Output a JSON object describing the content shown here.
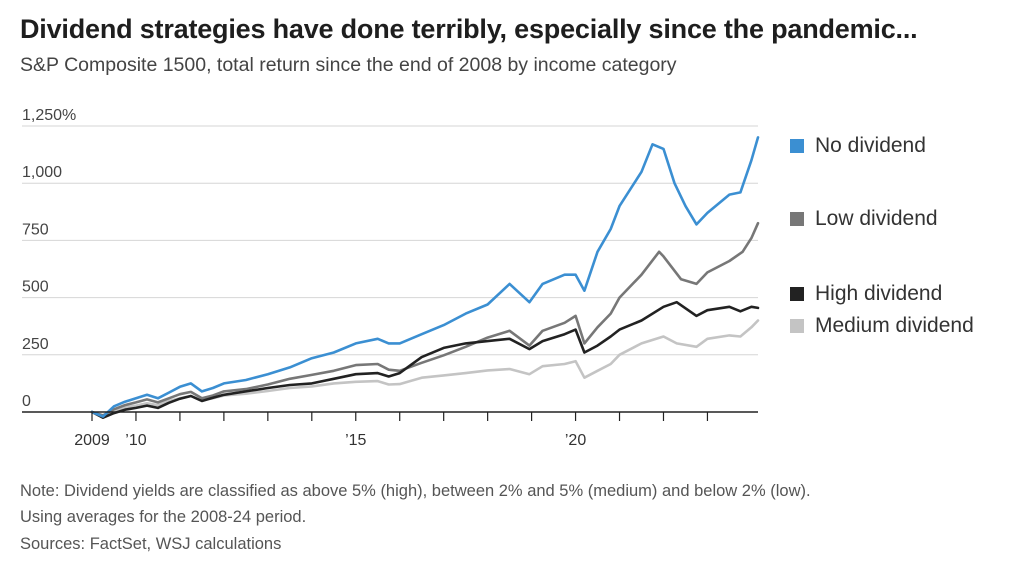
{
  "header": {
    "title": "Dividend strategies have done terribly, especially since the pandemic...",
    "subtitle": "S&P Composite 1500, total return since the end of 2008 by income category"
  },
  "notes": [
    "Note: Dividend yields are classified as above 5% (high), between 2% and 5% (medium) and below 2% (low).",
    "Using averages for the 2008-24 period.",
    "Sources: FactSet, WSJ calculations"
  ],
  "chart_data": {
    "type": "line",
    "y_unit": "%",
    "ylim": [
      -30,
      1250
    ],
    "xlim": [
      2008.9,
      2024.2
    ],
    "y_ticks": [
      {
        "value": 1250,
        "label": "1,250%"
      },
      {
        "value": 1000,
        "label": "1,000"
      },
      {
        "value": 750,
        "label": "750"
      },
      {
        "value": 500,
        "label": "500"
      },
      {
        "value": 250,
        "label": "250"
      },
      {
        "value": 0,
        "label": "0"
      }
    ],
    "x_ticks": [
      {
        "value": 2009,
        "label": "2009"
      },
      {
        "value": 2010,
        "label": "’10"
      },
      {
        "value": 2011,
        "label": ""
      },
      {
        "value": 2012,
        "label": ""
      },
      {
        "value": 2013,
        "label": ""
      },
      {
        "value": 2014,
        "label": ""
      },
      {
        "value": 2015,
        "label": "’15"
      },
      {
        "value": 2016,
        "label": ""
      },
      {
        "value": 2017,
        "label": ""
      },
      {
        "value": 2018,
        "label": ""
      },
      {
        "value": 2019,
        "label": ""
      },
      {
        "value": 2020,
        "label": "’20"
      },
      {
        "value": 2021,
        "label": ""
      },
      {
        "value": 2022,
        "label": ""
      },
      {
        "value": 2023,
        "label": ""
      }
    ],
    "grid": true,
    "legend_position": "right",
    "series": [
      {
        "name": "Medium dividend",
        "color": "#c4c4c4",
        "points": [
          [
            2009.0,
            0
          ],
          [
            2009.25,
            -20
          ],
          [
            2009.5,
            5
          ],
          [
            2009.75,
            20
          ],
          [
            2010.0,
            28
          ],
          [
            2010.25,
            38
          ],
          [
            2010.5,
            30
          ],
          [
            2010.75,
            48
          ],
          [
            2011.0,
            60
          ],
          [
            2011.25,
            70
          ],
          [
            2011.5,
            52
          ],
          [
            2011.75,
            60
          ],
          [
            2012.0,
            72
          ],
          [
            2012.5,
            80
          ],
          [
            2013.0,
            92
          ],
          [
            2013.5,
            105
          ],
          [
            2014.0,
            112
          ],
          [
            2014.5,
            125
          ],
          [
            2015.0,
            132
          ],
          [
            2015.5,
            135
          ],
          [
            2015.75,
            120
          ],
          [
            2016.0,
            122
          ],
          [
            2016.5,
            150
          ],
          [
            2017.0,
            160
          ],
          [
            2017.5,
            170
          ],
          [
            2018.0,
            182
          ],
          [
            2018.5,
            188
          ],
          [
            2018.95,
            165
          ],
          [
            2019.25,
            200
          ],
          [
            2019.75,
            210
          ],
          [
            2020.0,
            222
          ],
          [
            2020.2,
            150
          ],
          [
            2020.5,
            180
          ],
          [
            2020.8,
            210
          ],
          [
            2021.0,
            250
          ],
          [
            2021.5,
            300
          ],
          [
            2022.0,
            330
          ],
          [
            2022.3,
            300
          ],
          [
            2022.75,
            285
          ],
          [
            2023.0,
            320
          ],
          [
            2023.5,
            335
          ],
          [
            2023.75,
            330
          ],
          [
            2024.0,
            370
          ],
          [
            2024.15,
            400
          ]
        ]
      },
      {
        "name": "Low dividend",
        "color": "#777777",
        "points": [
          [
            2009.0,
            0
          ],
          [
            2009.25,
            -15
          ],
          [
            2009.5,
            12
          ],
          [
            2009.75,
            30
          ],
          [
            2010.0,
            42
          ],
          [
            2010.25,
            55
          ],
          [
            2010.5,
            42
          ],
          [
            2010.75,
            60
          ],
          [
            2011.0,
            78
          ],
          [
            2011.25,
            88
          ],
          [
            2011.5,
            60
          ],
          [
            2011.75,
            72
          ],
          [
            2012.0,
            90
          ],
          [
            2012.5,
            100
          ],
          [
            2013.0,
            120
          ],
          [
            2013.5,
            145
          ],
          [
            2014.0,
            162
          ],
          [
            2014.5,
            180
          ],
          [
            2015.0,
            205
          ],
          [
            2015.5,
            210
          ],
          [
            2015.75,
            185
          ],
          [
            2016.0,
            180
          ],
          [
            2016.5,
            215
          ],
          [
            2017.0,
            248
          ],
          [
            2017.5,
            285
          ],
          [
            2018.0,
            325
          ],
          [
            2018.5,
            355
          ],
          [
            2018.95,
            290
          ],
          [
            2019.25,
            355
          ],
          [
            2019.75,
            390
          ],
          [
            2020.0,
            420
          ],
          [
            2020.2,
            300
          ],
          [
            2020.5,
            370
          ],
          [
            2020.8,
            430
          ],
          [
            2021.0,
            500
          ],
          [
            2021.5,
            600
          ],
          [
            2021.9,
            700
          ],
          [
            2022.0,
            680
          ],
          [
            2022.4,
            580
          ],
          [
            2022.75,
            560
          ],
          [
            2023.0,
            610
          ],
          [
            2023.5,
            660
          ],
          [
            2023.8,
            700
          ],
          [
            2024.0,
            760
          ],
          [
            2024.15,
            825
          ]
        ]
      },
      {
        "name": "High dividend",
        "color": "#222222",
        "points": [
          [
            2009.0,
            0
          ],
          [
            2009.25,
            -25
          ],
          [
            2009.5,
            -5
          ],
          [
            2009.75,
            10
          ],
          [
            2010.0,
            18
          ],
          [
            2010.25,
            28
          ],
          [
            2010.5,
            18
          ],
          [
            2010.75,
            40
          ],
          [
            2011.0,
            58
          ],
          [
            2011.25,
            70
          ],
          [
            2011.5,
            48
          ],
          [
            2011.75,
            62
          ],
          [
            2012.0,
            75
          ],
          [
            2012.5,
            90
          ],
          [
            2013.0,
            105
          ],
          [
            2013.5,
            118
          ],
          [
            2014.0,
            125
          ],
          [
            2014.5,
            145
          ],
          [
            2015.0,
            165
          ],
          [
            2015.5,
            170
          ],
          [
            2015.75,
            155
          ],
          [
            2016.0,
            170
          ],
          [
            2016.5,
            240
          ],
          [
            2017.0,
            280
          ],
          [
            2017.5,
            300
          ],
          [
            2018.0,
            310
          ],
          [
            2018.5,
            320
          ],
          [
            2018.95,
            275
          ],
          [
            2019.25,
            310
          ],
          [
            2019.75,
            340
          ],
          [
            2020.0,
            360
          ],
          [
            2020.2,
            260
          ],
          [
            2020.5,
            290
          ],
          [
            2020.8,
            330
          ],
          [
            2021.0,
            360
          ],
          [
            2021.5,
            400
          ],
          [
            2022.0,
            460
          ],
          [
            2022.3,
            480
          ],
          [
            2022.75,
            420
          ],
          [
            2023.0,
            445
          ],
          [
            2023.5,
            460
          ],
          [
            2023.75,
            440
          ],
          [
            2024.0,
            460
          ],
          [
            2024.15,
            455
          ]
        ]
      },
      {
        "name": "No dividend",
        "color": "#3b8fd2",
        "points": [
          [
            2009.0,
            0
          ],
          [
            2009.25,
            -20
          ],
          [
            2009.5,
            25
          ],
          [
            2009.75,
            45
          ],
          [
            2010.0,
            60
          ],
          [
            2010.25,
            75
          ],
          [
            2010.5,
            60
          ],
          [
            2010.75,
            85
          ],
          [
            2011.0,
            110
          ],
          [
            2011.25,
            125
          ],
          [
            2011.5,
            90
          ],
          [
            2011.75,
            105
          ],
          [
            2012.0,
            125
          ],
          [
            2012.5,
            140
          ],
          [
            2013.0,
            165
          ],
          [
            2013.5,
            195
          ],
          [
            2014.0,
            235
          ],
          [
            2014.5,
            260
          ],
          [
            2015.0,
            300
          ],
          [
            2015.5,
            320
          ],
          [
            2015.75,
            300
          ],
          [
            2016.0,
            300
          ],
          [
            2016.5,
            340
          ],
          [
            2017.0,
            380
          ],
          [
            2017.5,
            430
          ],
          [
            2018.0,
            470
          ],
          [
            2018.5,
            560
          ],
          [
            2018.95,
            480
          ],
          [
            2019.25,
            560
          ],
          [
            2019.75,
            600
          ],
          [
            2020.0,
            600
          ],
          [
            2020.2,
            530
          ],
          [
            2020.5,
            700
          ],
          [
            2020.8,
            800
          ],
          [
            2021.0,
            900
          ],
          [
            2021.5,
            1050
          ],
          [
            2021.75,
            1170
          ],
          [
            2022.0,
            1150
          ],
          [
            2022.25,
            1000
          ],
          [
            2022.5,
            900
          ],
          [
            2022.75,
            820
          ],
          [
            2023.0,
            870
          ],
          [
            2023.5,
            950
          ],
          [
            2023.75,
            960
          ],
          [
            2024.0,
            1100
          ],
          [
            2024.15,
            1200
          ]
        ]
      }
    ],
    "legend": [
      {
        "label": "No dividend",
        "color": "#3b8fd2"
      },
      {
        "label": "Low dividend",
        "color": "#777777"
      },
      {
        "label": "High dividend",
        "color": "#222222"
      },
      {
        "label": "Medium dividend",
        "color": "#c4c4c4"
      }
    ]
  }
}
